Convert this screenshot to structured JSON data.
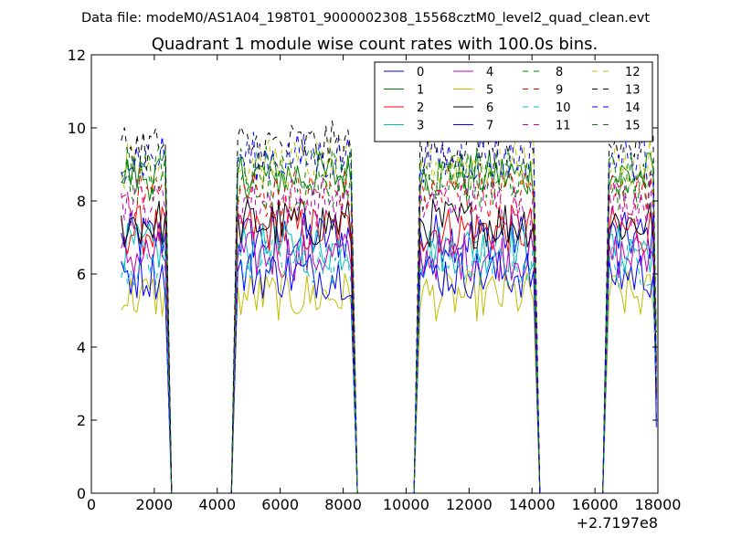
{
  "header": {
    "data_file": "Data file: modeM0/AS1A04_198T01_9000002308_15568cztM0_level2_quad_clean.evt"
  },
  "chart_data": {
    "type": "line",
    "title": "Quadrant 1 module wise count rates with 100.0s bins.",
    "xlabel": "",
    "ylabel": "",
    "xlim": [
      0,
      18000
    ],
    "ylim": [
      0,
      12
    ],
    "x_ticks": [
      "0",
      "2000",
      "4000",
      "6000",
      "8000",
      "10000",
      "12000",
      "14000",
      "16000",
      "18000"
    ],
    "y_ticks": [
      "0",
      "2",
      "4",
      "6",
      "8",
      "10",
      "12"
    ],
    "x_offset_label": "+2.7197e8",
    "grid": false,
    "legend_position": "top-right",
    "legend_columns": 4,
    "segments": [
      {
        "start": 950,
        "end": 2350,
        "drop_to": 2550
      },
      {
        "start": 4650,
        "end": 8250,
        "drop_to": 8450
      },
      {
        "start": 10450,
        "end": 14050,
        "drop_to": 14250
      },
      {
        "start": 16450,
        "end": 17850,
        "drop_to": 17950
      }
    ],
    "series": [
      {
        "name": "0",
        "color": "#0000ff",
        "dash": false,
        "mean": 7.0
      },
      {
        "name": "1",
        "color": "#008000",
        "dash": false,
        "mean": 8.7
      },
      {
        "name": "2",
        "color": "#ff0000",
        "dash": false,
        "mean": 7.2
      },
      {
        "name": "3",
        "color": "#00bfbf",
        "dash": false,
        "mean": 6.7
      },
      {
        "name": "4",
        "color": "#bf00bf",
        "dash": false,
        "mean": 6.5
      },
      {
        "name": "5",
        "color": "#bfbf00",
        "dash": false,
        "mean": 5.4
      },
      {
        "name": "6",
        "color": "#000000",
        "dash": false,
        "mean": 7.4
      },
      {
        "name": "7",
        "color": "#0000ff",
        "dash": false,
        "mean": 6.0
      },
      {
        "name": "8",
        "color": "#008000",
        "dash": true,
        "mean": 8.4
      },
      {
        "name": "9",
        "color": "#ff0000",
        "dash": true,
        "mean": 8.2
      },
      {
        "name": "10",
        "color": "#00bfbf",
        "dash": true,
        "mean": 6.3
      },
      {
        "name": "11",
        "color": "#bf00bf",
        "dash": true,
        "mean": 8.0
      },
      {
        "name": "12",
        "color": "#bfbf00",
        "dash": true,
        "mean": 9.0
      },
      {
        "name": "13",
        "color": "#000000",
        "dash": true,
        "mean": 9.5
      },
      {
        "name": "14",
        "color": "#0000ff",
        "dash": true,
        "mean": 9.2
      },
      {
        "name": "15",
        "color": "#008000",
        "dash": true,
        "mean": 8.8
      }
    ]
  }
}
